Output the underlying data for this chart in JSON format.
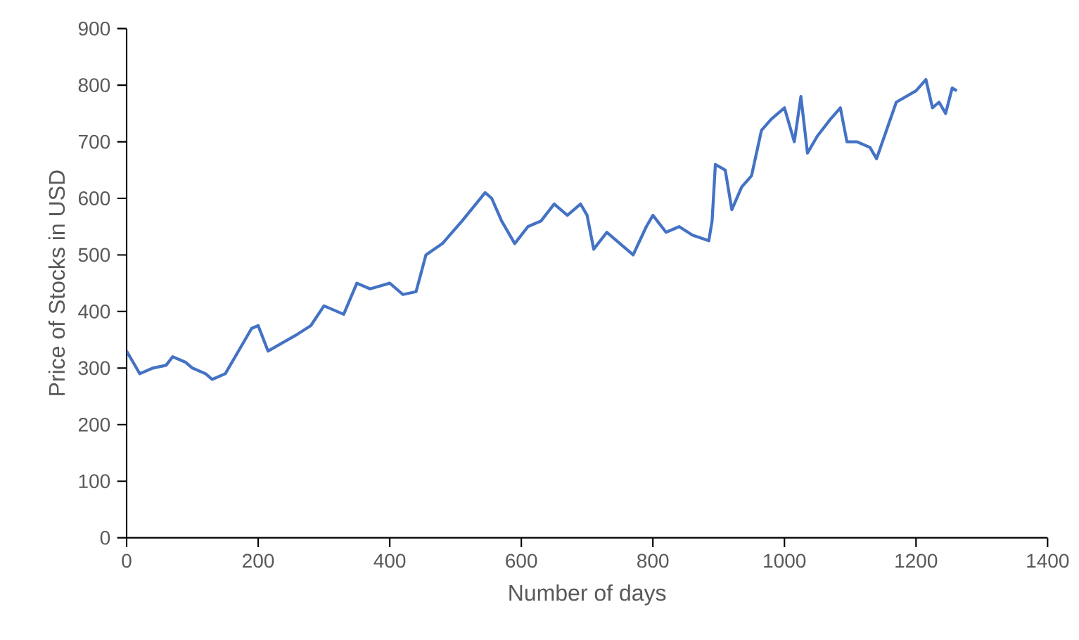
{
  "chart_data": {
    "type": "line",
    "xlabel": "Number of days",
    "ylabel": "Price of Stocks in USD",
    "xlim": [
      0,
      1400
    ],
    "ylim": [
      0,
      900
    ],
    "xticks": [
      0,
      200,
      400,
      600,
      800,
      1000,
      1200,
      1400
    ],
    "yticks": [
      0,
      100,
      200,
      300,
      400,
      500,
      600,
      700,
      800,
      900
    ],
    "grid": false,
    "marker": "none",
    "line_style": "solid",
    "series": [
      {
        "color": "#4472c4",
        "x": [
          0,
          10,
          20,
          40,
          60,
          70,
          90,
          100,
          120,
          130,
          150,
          170,
          190,
          200,
          215,
          230,
          260,
          280,
          300,
          330,
          350,
          370,
          400,
          420,
          440,
          455,
          480,
          510,
          545,
          555,
          570,
          590,
          610,
          630,
          650,
          670,
          690,
          700,
          710,
          730,
          750,
          770,
          790,
          800,
          820,
          840,
          860,
          885,
          890,
          895,
          910,
          920,
          935,
          950,
          965,
          980,
          1000,
          1015,
          1025,
          1035,
          1050,
          1070,
          1085,
          1095,
          1110,
          1130,
          1140,
          1155,
          1170,
          1200,
          1215,
          1225,
          1235,
          1245,
          1255,
          1262
        ],
        "values": [
          330,
          310,
          290,
          300,
          305,
          320,
          310,
          300,
          290,
          280,
          290,
          330,
          370,
          375,
          330,
          340,
          360,
          375,
          410,
          395,
          450,
          440,
          450,
          430,
          435,
          500,
          520,
          560,
          610,
          600,
          560,
          520,
          550,
          560,
          590,
          570,
          590,
          570,
          510,
          540,
          520,
          500,
          550,
          570,
          540,
          550,
          535,
          525,
          560,
          660,
          650,
          580,
          620,
          640,
          720,
          740,
          760,
          700,
          780,
          680,
          710,
          740,
          760,
          700,
          700,
          690,
          670,
          720,
          770,
          790,
          810,
          760,
          770,
          750,
          795,
          790
        ]
      }
    ]
  }
}
